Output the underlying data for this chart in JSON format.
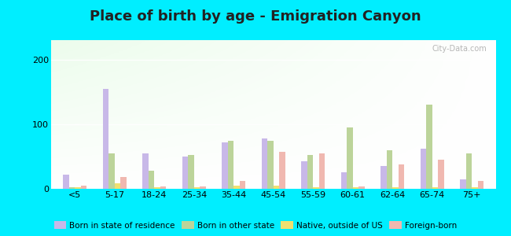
{
  "title": "Place of birth by age - Emigration Canyon",
  "categories": [
    "<5",
    "5-17",
    "18-24",
    "25-34",
    "35-44",
    "45-54",
    "55-59",
    "60-61",
    "62-64",
    "65-74",
    "75+"
  ],
  "series": {
    "Born in state of residence": [
      22,
      155,
      55,
      50,
      72,
      78,
      42,
      25,
      35,
      62,
      15
    ],
    "Born in other state": [
      3,
      55,
      28,
      52,
      74,
      74,
      52,
      95,
      60,
      130,
      55
    ],
    "Native, outside of US": [
      2,
      8,
      2,
      3,
      5,
      5,
      2,
      2,
      2,
      3,
      2
    ],
    "Foreign-born": [
      5,
      18,
      4,
      4,
      12,
      57,
      55,
      4,
      38,
      45,
      12
    ]
  },
  "colors": {
    "Born in state of residence": "#c8b8e8",
    "Born in other state": "#bcd49a",
    "Native, outside of US": "#f0e070",
    "Foreign-born": "#f0b8b0"
  },
  "ylim": [
    0,
    230
  ],
  "yticks": [
    0,
    100,
    200
  ],
  "outer_bg": "#00eeff",
  "plot_bg_left": "#c8e8c0",
  "plot_bg_right": "#f0f8f0",
  "title_fontsize": 13,
  "title_color": "#222222",
  "watermark": "City-Data.com"
}
